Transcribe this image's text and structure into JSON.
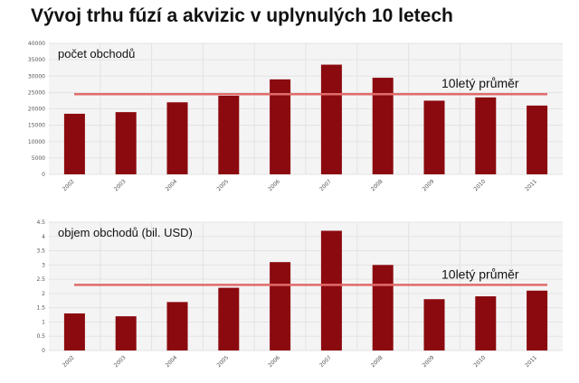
{
  "title": "Vývoj trhu fúzí a akvizic v uplynulých 10 letech",
  "colors": {
    "bar": "#8b0a0f",
    "avg_line": "#e06b6b",
    "grid": "#e3e3e3",
    "panel": "#f4f4f4"
  },
  "chart_data": [
    {
      "type": "bar",
      "ylabel": "počet obchodů",
      "categories": [
        "2002",
        "2003",
        "2004",
        "2005",
        "2006",
        "2007",
        "2008",
        "2009",
        "2010",
        "2011"
      ],
      "values": [
        18500,
        19000,
        22000,
        24000,
        29000,
        33500,
        29500,
        22500,
        23500,
        21000
      ],
      "yticks": [
        "0",
        "5000",
        "10000",
        "15000",
        "20000",
        "25000",
        "30000",
        "35000",
        "40000"
      ],
      "ylim": [
        0,
        40000
      ],
      "average": 24500,
      "average_label": "10letý průměr",
      "grid": true
    },
    {
      "type": "bar",
      "ylabel": "objem obchodů (bil. USD)",
      "categories": [
        "2002",
        "2003",
        "2004",
        "2005",
        "2006",
        "2007",
        "2008",
        "2009",
        "2010",
        "2011"
      ],
      "values": [
        1.3,
        1.2,
        1.7,
        2.2,
        3.1,
        4.2,
        3.0,
        1.8,
        1.9,
        2.1
      ],
      "yticks": [
        "0",
        "0.5",
        "1",
        "1.5",
        "2",
        "2.5",
        "3",
        "3.5",
        "4",
        "4.5"
      ],
      "ylim": [
        0,
        4.5
      ],
      "average": 2.3,
      "average_label": "10letý průměr",
      "grid": true
    }
  ]
}
